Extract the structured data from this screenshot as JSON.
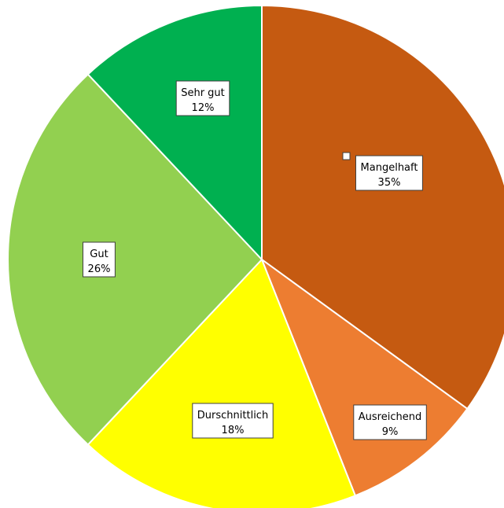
{
  "chart_data": {
    "type": "pie",
    "title": "",
    "start_angle_deg": 0,
    "direction": "clockwise",
    "legend": "none",
    "slices": [
      {
        "label": "Mangelhaft",
        "value": 35,
        "value_label": "35%",
        "color": "#C55A11"
      },
      {
        "label": "Ausreichend",
        "value": 9,
        "value_label": "9%",
        "color": "#ED7D31"
      },
      {
        "label": "Durschnittlich",
        "value": 18,
        "value_label": "18%",
        "color": "#FFFF00"
      },
      {
        "label": "Gut",
        "value": 26,
        "value_label": "26%",
        "color": "#92D050"
      },
      {
        "label": "Sehr gut",
        "value": 12,
        "value_label": "12%",
        "color": "#00B050"
      }
    ]
  }
}
